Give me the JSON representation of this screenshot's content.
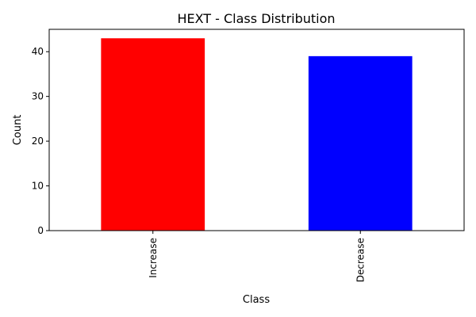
{
  "chart_data": {
    "type": "bar",
    "title": "HEXT - Class Distribution",
    "xlabel": "Class",
    "ylabel": "Count",
    "categories": [
      "Increase",
      "Decrease"
    ],
    "values": [
      43,
      39
    ],
    "colors": [
      "#ff0000",
      "#0000ff"
    ],
    "ylim": [
      0,
      45
    ],
    "yticks": [
      0,
      10,
      20,
      30,
      40
    ],
    "grid": false,
    "legend": "none"
  }
}
